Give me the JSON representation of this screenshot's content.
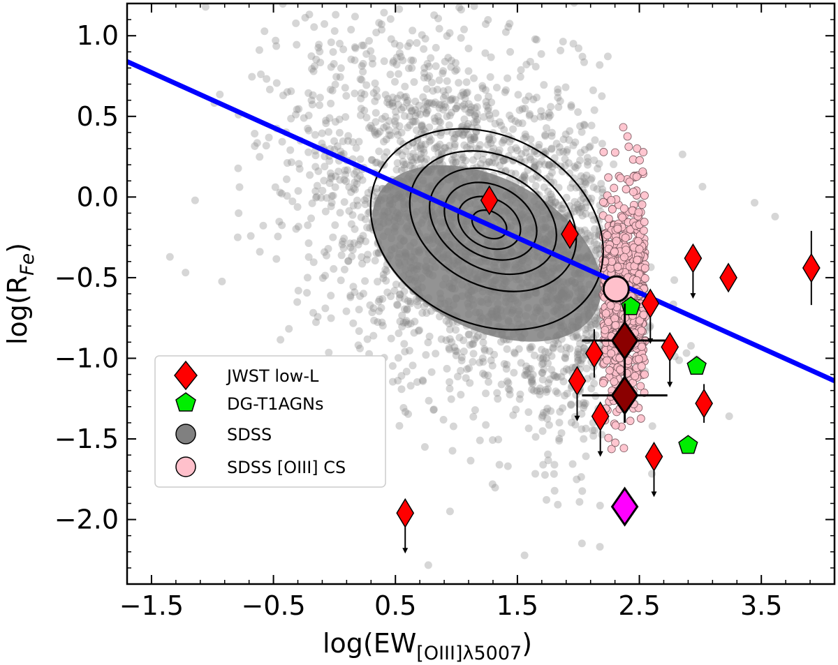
{
  "chart_data": {
    "type": "scatter",
    "xlabel": {
      "main": "log(EW",
      "sub": "[OIII]λ5007",
      "close": ")"
    },
    "ylabel": {
      "main": "log(R",
      "sub": "Fe",
      "close": ")"
    },
    "xlim": [
      -1.7,
      4.1
    ],
    "ylim": [
      -2.4,
      1.2
    ],
    "x_ticks": [
      -1.5,
      -0.5,
      0.5,
      1.5,
      2.5,
      3.5
    ],
    "x_tick_labels": [
      "−1.5",
      "−0.5",
      "0.5",
      "1.5",
      "2.5",
      "3.5"
    ],
    "y_ticks": [
      -2.0,
      -1.5,
      -1.0,
      -0.5,
      0.0,
      0.5,
      1.0
    ],
    "y_tick_labels": [
      "−2.0",
      "−1.5",
      "−1.0",
      "−0.5",
      "0.0",
      "0.5",
      "1.0"
    ],
    "grid": false,
    "legend_placement": "lower-left",
    "colors": {
      "jwst": "#ff0000",
      "dg": "#00ee00",
      "sdss": "#808080",
      "sdss_cs": "#ffc0cb",
      "fit_line": "#0000ff",
      "dark_marker": "#8b0000",
      "magenta_marker": "#ff00ff"
    },
    "fit_line": {
      "x": [
        -1.7,
        4.1
      ],
      "y": [
        0.84,
        -1.14
      ]
    },
    "sdss_cloud": {
      "center": [
        1.2,
        -0.2
      ],
      "spread_x": 0.75,
      "spread_y": 0.55
    },
    "contours": [
      {
        "center": [
          1.25,
          -0.2
        ],
        "rx": 1.0,
        "ry": 0.58,
        "rotation_deg": -28
      },
      {
        "center": [
          1.3,
          -0.15
        ],
        "rx": 0.72,
        "ry": 0.4,
        "rotation_deg": -28
      },
      {
        "center": [
          1.3,
          -0.15
        ],
        "rx": 0.55,
        "ry": 0.3,
        "rotation_deg": -28
      },
      {
        "center": [
          1.28,
          -0.15
        ],
        "rx": 0.4,
        "ry": 0.22,
        "rotation_deg": -28
      },
      {
        "center": [
          1.27,
          -0.16
        ],
        "rx": 0.27,
        "ry": 0.15,
        "rotation_deg": -28
      },
      {
        "center": [
          1.27,
          -0.17
        ],
        "rx": 0.15,
        "ry": 0.08,
        "rotation_deg": -28
      }
    ],
    "series": [
      {
        "name": "JWST low-L",
        "marker": "diamond",
        "points": [
          {
            "x": 1.27,
            "y": -0.02
          },
          {
            "x": 1.93,
            "y": -0.23
          },
          {
            "x": 2.94,
            "y": -0.38,
            "upper_limit": true
          },
          {
            "x": 3.23,
            "y": -0.5
          },
          {
            "x": 3.91,
            "y": -0.44,
            "yerr": 0.23
          },
          {
            "x": 2.59,
            "y": -0.66,
            "upper_limit": true
          },
          {
            "x": 2.75,
            "y": -0.93,
            "upper_limit": true
          },
          {
            "x": 2.13,
            "y": -0.97,
            "yerr": 0.15
          },
          {
            "x": 1.99,
            "y": -1.14,
            "upper_limit": true
          },
          {
            "x": 3.03,
            "y": -1.28,
            "yerr": 0.12
          },
          {
            "x": 2.18,
            "y": -1.36,
            "upper_limit": true
          },
          {
            "x": 2.62,
            "y": -1.61,
            "upper_limit": true
          },
          {
            "x": 0.58,
            "y": -1.96,
            "upper_limit": true
          }
        ]
      },
      {
        "name": "DG-T1AGNs",
        "marker": "pentagon",
        "points": [
          {
            "x": 2.43,
            "y": -0.68
          },
          {
            "x": 2.97,
            "y": -1.05
          },
          {
            "x": 2.9,
            "y": -1.54
          }
        ]
      },
      {
        "name": "SDSS",
        "marker": "circle"
      },
      {
        "name": "SDSS [OIII] CS",
        "marker": "circle",
        "mean_point": {
          "x": 2.31,
          "y": -0.57
        }
      }
    ],
    "special_points": [
      {
        "color": "dark_marker",
        "x": 2.38,
        "y": -0.89,
        "xerr": 0.35,
        "yerr": 0.23
      },
      {
        "color": "dark_marker",
        "x": 2.38,
        "y": -1.23,
        "xerr": 0.35,
        "yerr": 0.17
      },
      {
        "color": "magenta_marker",
        "x": 2.38,
        "y": -1.92
      }
    ]
  }
}
